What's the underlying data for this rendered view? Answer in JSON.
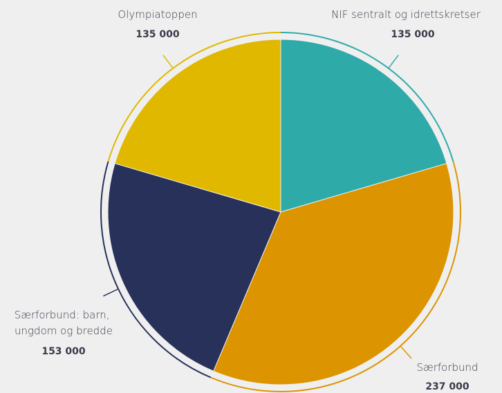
{
  "chart_data": {
    "type": "pie",
    "slices": [
      {
        "label": "NIF sentralt og idrettskretser",
        "label_lines": [
          "NIF sentralt og idrettskretser"
        ],
        "value": 135000,
        "value_label": "135 000",
        "color": "#2eaaa9"
      },
      {
        "label": "Særforbund",
        "label_lines": [
          "Særforbund"
        ],
        "value": 237000,
        "value_label": "237 000",
        "color": "#dc9400"
      },
      {
        "label": "Særforbund: barn, ungdom og bredde",
        "label_lines": [
          "Særforbund: barn,",
          "ungdom og bredde"
        ],
        "value": 153000,
        "value_label": "153 000",
        "color": "#27315a"
      },
      {
        "label": "Olympiatoppen",
        "label_lines": [
          "Olympiatoppen"
        ],
        "value": 135000,
        "value_label": "135 000",
        "color": "#e0b800"
      }
    ],
    "start": "12 o'clock",
    "direction": "clockwise"
  }
}
